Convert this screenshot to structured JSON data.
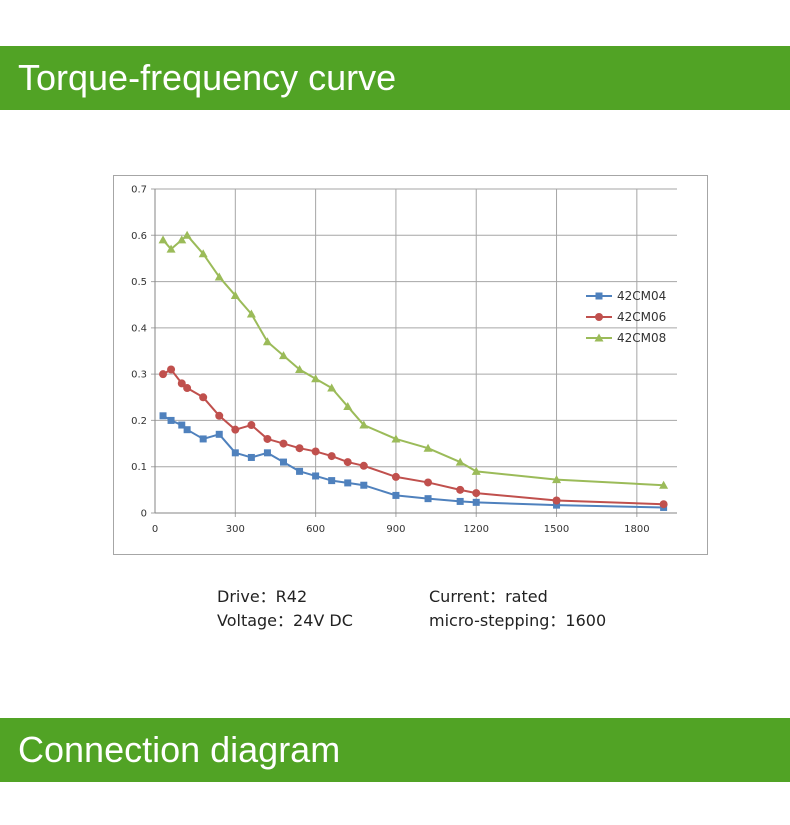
{
  "sections": {
    "torque_title": "Torque-frequency curve",
    "connection_title": "Connection diagram"
  },
  "specs": {
    "drive": "Drive：R42",
    "voltage": "Voltage：24V DC",
    "current": "Current：rated",
    "microstepping": "micro-stepping：1600"
  },
  "colors": {
    "banner": "#51a325",
    "series": [
      "#4f81bd",
      "#c0504d",
      "#9bbb59"
    ]
  },
  "chart_data": {
    "type": "line",
    "title": "",
    "xlabel": "",
    "ylabel": "",
    "xlim": [
      0,
      1950
    ],
    "ylim": [
      0,
      0.7
    ],
    "x_ticks": [
      0,
      300,
      600,
      900,
      1200,
      1500,
      1800
    ],
    "y_ticks": [
      0,
      0.1,
      0.2,
      0.3,
      0.4,
      0.5,
      0.6,
      0.7
    ],
    "y_tick_labels": [
      "0",
      "0.1",
      "0.2",
      "0.3",
      "0.4",
      "0.5",
      "0.6",
      "0.7"
    ],
    "grid": true,
    "legend_position": "right",
    "series": [
      {
        "name": "42CM04",
        "marker": "square",
        "x": [
          30,
          60,
          100,
          120,
          180,
          240,
          300,
          360,
          420,
          480,
          540,
          600,
          660,
          720,
          780,
          900,
          1020,
          1140,
          1200,
          1500,
          1900
        ],
        "y": [
          0.21,
          0.2,
          0.19,
          0.18,
          0.16,
          0.17,
          0.13,
          0.12,
          0.13,
          0.11,
          0.09,
          0.08,
          0.07,
          0.065,
          0.06,
          0.038,
          0.031,
          0.025,
          0.023,
          0.017,
          0.012
        ]
      },
      {
        "name": "42CM06",
        "marker": "circle",
        "x": [
          30,
          60,
          100,
          120,
          180,
          240,
          300,
          360,
          420,
          480,
          540,
          600,
          660,
          720,
          780,
          900,
          1020,
          1140,
          1200,
          1500,
          1900
        ],
        "y": [
          0.3,
          0.31,
          0.28,
          0.27,
          0.25,
          0.21,
          0.18,
          0.19,
          0.16,
          0.15,
          0.14,
          0.133,
          0.123,
          0.11,
          0.102,
          0.078,
          0.066,
          0.05,
          0.043,
          0.027,
          0.019
        ]
      },
      {
        "name": "42CM08",
        "marker": "triangle",
        "x": [
          30,
          60,
          100,
          120,
          180,
          240,
          300,
          360,
          420,
          480,
          540,
          600,
          660,
          720,
          780,
          900,
          1020,
          1140,
          1200,
          1500,
          1900
        ],
        "y": [
          0.59,
          0.57,
          0.59,
          0.6,
          0.56,
          0.51,
          0.47,
          0.43,
          0.37,
          0.34,
          0.31,
          0.29,
          0.27,
          0.23,
          0.19,
          0.16,
          0.14,
          0.11,
          0.09,
          0.072,
          0.06
        ]
      }
    ]
  }
}
